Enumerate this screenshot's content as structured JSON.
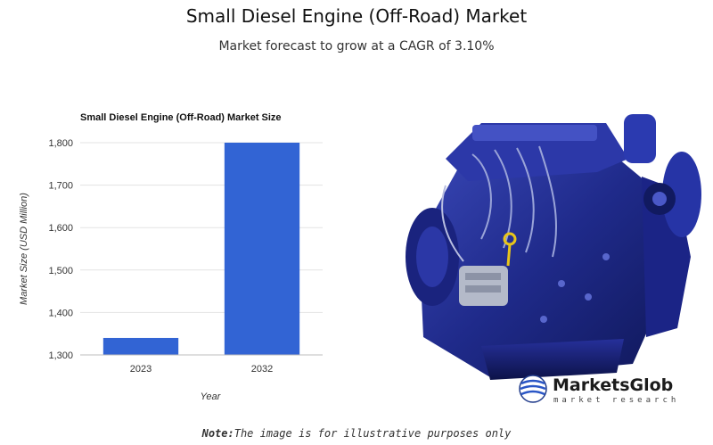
{
  "header": {
    "title": "Small Diesel Engine (Off-Road) Market",
    "subtitle": "Market forecast to grow at a CAGR of 3.10%"
  },
  "chart_data": {
    "type": "bar",
    "title": "Small Diesel Engine (Off-Road) Market Size",
    "categories": [
      "2023",
      "2032"
    ],
    "values": [
      1340,
      1800
    ],
    "xlabel": "Year",
    "ylabel": "Market Size (USD Million)",
    "ylim": [
      1300,
      1800
    ],
    "yticks": [
      1300,
      1400,
      1500,
      1600,
      1700,
      1800
    ],
    "ytick_labels": [
      "1,300",
      "1,400",
      "1,500",
      "1,600",
      "1,700",
      "1,800"
    ],
    "grid": true,
    "bar_color": "#3264d4"
  },
  "image": {
    "icon": "diesel-engine-illustration",
    "logo": {
      "name": "MarketsGlob",
      "tagline": "market research",
      "icon": "globe-logo-icon"
    }
  },
  "footer": {
    "note_label": "Note:",
    "note_text": "The image is for illustrative purposes only"
  }
}
